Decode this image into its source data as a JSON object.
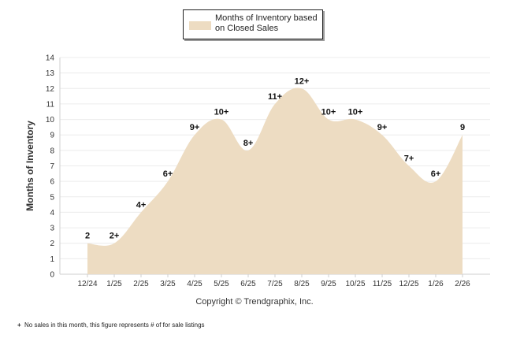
{
  "chart_data": {
    "type": "area",
    "title": "",
    "xlabel": "",
    "ylabel": "Months of Inventory",
    "ylim": [
      0,
      14
    ],
    "y_ticks": [
      0,
      1,
      2,
      3,
      4,
      5,
      6,
      7,
      8,
      9,
      10,
      11,
      12,
      13,
      14
    ],
    "grid": true,
    "legend_position": "top-center",
    "categories": [
      "12/24",
      "1/25",
      "2/25",
      "3/25",
      "4/25",
      "5/25",
      "6/25",
      "7/25",
      "8/25",
      "9/25",
      "10/25",
      "11/25",
      "12/25",
      "1/26",
      "2/26"
    ],
    "series": [
      {
        "name": "Months of Inventory based on Closed Sales",
        "color": "#eddcc2",
        "values": [
          2,
          2,
          4,
          6,
          9,
          10,
          8,
          11,
          12,
          10,
          10,
          9,
          7,
          6,
          9
        ],
        "labels": [
          "2",
          "2+",
          "4+",
          "6+",
          "9+",
          "10+",
          "8+",
          "11+",
          "12+",
          "10+",
          "10+",
          "9+",
          "7+",
          "6+",
          "9"
        ]
      }
    ]
  },
  "legend": {
    "label": "Months of Inventory based on Closed Sales",
    "swatch_color": "#eddcc2"
  },
  "copyright": "Copyright © Trendgraphix, Inc.",
  "footnote": {
    "marker": "+",
    "text": "No sales in this month, this figure represents # of for sale listings"
  }
}
